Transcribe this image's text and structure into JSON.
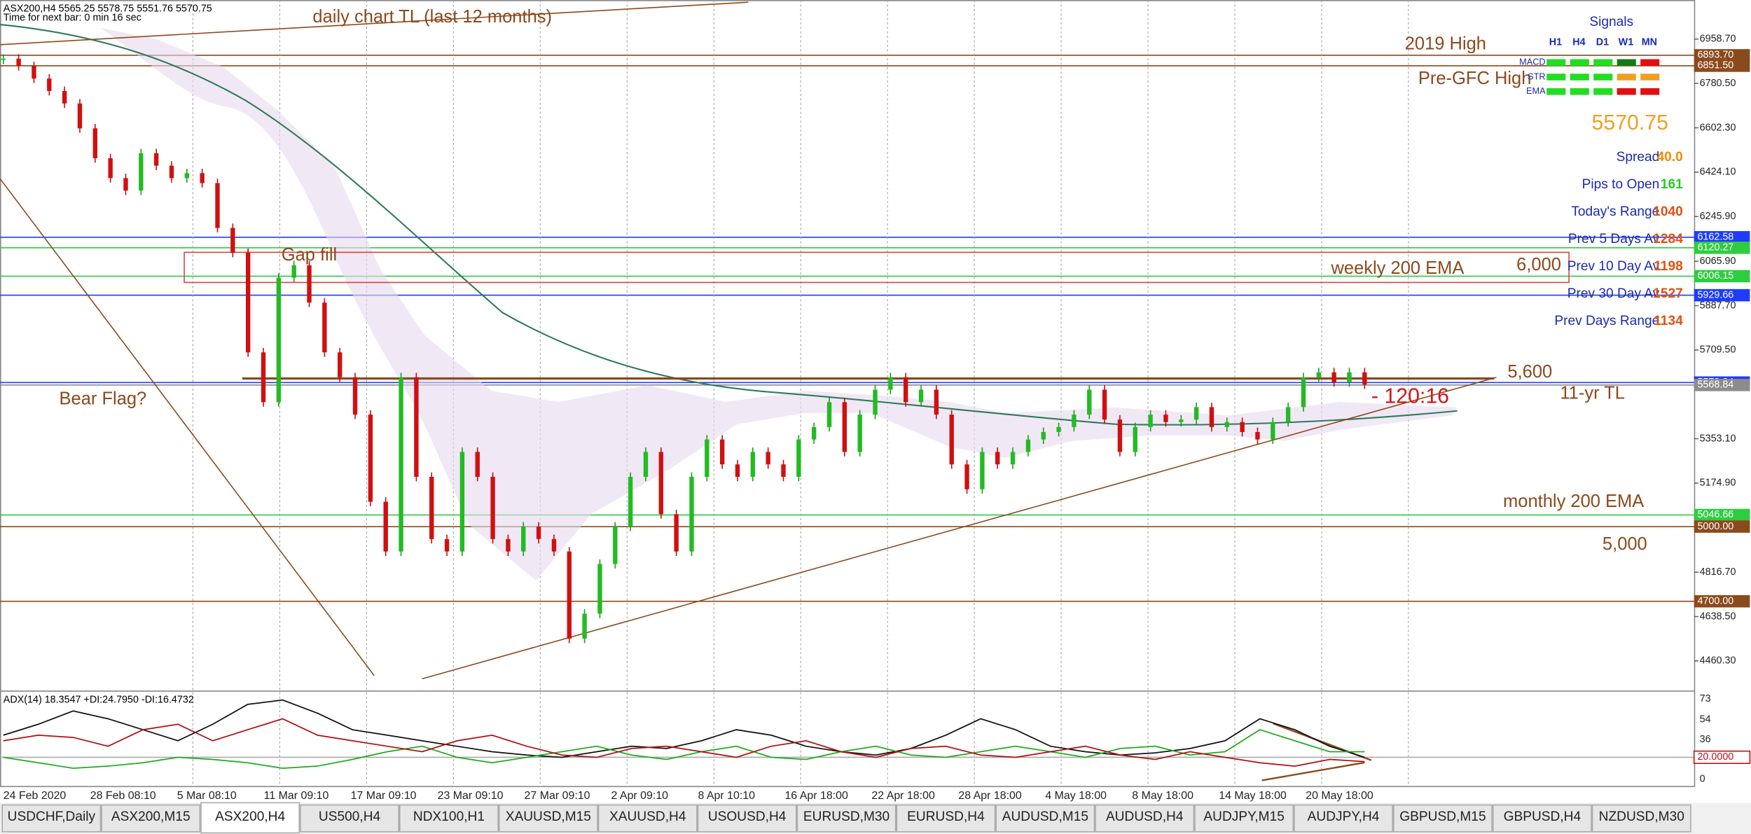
{
  "header": {
    "symbol_line": "ASX200,H4  5565.25 5578.75 5551.76 5570.75",
    "timer": "Time for next bar: 0 min 16 sec"
  },
  "price_axis": [
    {
      "value": 6958.7,
      "label": "6958.70"
    },
    {
      "value": 6780.5,
      "label": "6780.50"
    },
    {
      "value": 6602.3,
      "label": "6602.30"
    },
    {
      "value": 6424.1,
      "label": "6424.10"
    },
    {
      "value": 6245.9,
      "label": "6245.90"
    },
    {
      "value": 6065.9,
      "label": "6065.90"
    },
    {
      "value": 5887.7,
      "label": "5887.70"
    },
    {
      "value": 5709.5,
      "label": "5709.50"
    },
    {
      "value": 5353.1,
      "label": "5353.10"
    },
    {
      "value": 5174.9,
      "label": "5174.90"
    },
    {
      "value": 4816.7,
      "label": "4816.70"
    },
    {
      "value": 4638.5,
      "label": "4638.50"
    },
    {
      "value": 4460.3,
      "label": "4460.30"
    }
  ],
  "price_markers": [
    {
      "value": 6893.7,
      "label": "6893.70",
      "color": "#8b4a1c"
    },
    {
      "value": 6851.5,
      "label": "6851.50",
      "color": "#8b4a1c"
    },
    {
      "value": 6162.58,
      "label": "6162.58",
      "color": "#1e3cff"
    },
    {
      "value": 6120.27,
      "label": "6120.27",
      "color": "#2ecc40"
    },
    {
      "value": 6006.15,
      "label": "6006.15",
      "color": "#2ecc40"
    },
    {
      "value": 5929.66,
      "label": "5929.66",
      "color": "#1e3cff"
    },
    {
      "value": 5578.84,
      "label": "5578.84",
      "color": "#1e3cff"
    },
    {
      "value": 5568.84,
      "label": "5568.84",
      "color": "#8c8c8c"
    },
    {
      "value": 5046.66,
      "label": "5046.66",
      "color": "#2ecc40"
    },
    {
      "value": 5000,
      "label": "5000.00",
      "color": "#8b4a1c"
    },
    {
      "value": 4700,
      "label": "4700.00",
      "color": "#8b4a1c"
    }
  ],
  "time_axis": [
    "24 Feb 2020",
    "28 Feb 08:10",
    "5 Mar 08:10",
    "11 Mar 09:10",
    "17 Mar 09:10",
    "23 Mar 09:10",
    "27 Mar 09:10",
    "2 Apr 09:10",
    "8 Apr 10:10",
    "16 Apr 18:00",
    "22 Apr 18:00",
    "28 Apr 18:00",
    "4 May 18:00",
    "8 May 18:00",
    "14 May 18:00",
    "20 May 18:00"
  ],
  "annotations": {
    "daily_tl": "daily chart TL (last 12 months)",
    "high_2019": "2019 High",
    "pre_gfc": "Pre-GFC High",
    "gap_fill": "Gap fill",
    "weekly_ema": "weekly 200 EMA",
    "level_6000": "6,000",
    "bear_flag": "Bear Flag?",
    "level_5600": "5,600",
    "tl_11yr": "11-yr TL",
    "countdown": "- 120:16",
    "monthly_ema": "monthly 200 EMA",
    "level_5000": "5,000"
  },
  "signals": {
    "title": "Signals",
    "columns": [
      "H1",
      "H4",
      "D1",
      "W1",
      "MN"
    ],
    "rows": [
      {
        "name": "MACD",
        "colors": [
          "#22dd22",
          "#22dd22",
          "#22dd22",
          "#137a13",
          "#e01010"
        ]
      },
      {
        "name": "STR",
        "colors": [
          "#22dd22",
          "#22dd22",
          "#22dd22",
          "#f0a020",
          "#f0a020"
        ]
      },
      {
        "name": "EMA",
        "colors": [
          "#22dd22",
          "#22dd22",
          "#22dd22",
          "#e01010",
          "#e01010"
        ]
      }
    ]
  },
  "current_price": "5570.75",
  "info": [
    {
      "label": "Spread",
      "value": "40.0",
      "color": "#f08a00"
    },
    {
      "label": "Pips to Open",
      "value": "161",
      "color": "#22cc22"
    },
    {
      "label": "Today's Range",
      "value": "1040",
      "color": "#e05010"
    },
    {
      "label": "Prev 5 Days Av",
      "value": "1284",
      "color": "#e05010"
    },
    {
      "label": "Prev 10 Day Av",
      "value": "1198",
      "color": "#e05010"
    },
    {
      "label": "Prev 30 Day Av",
      "value": "1527",
      "color": "#e05010"
    },
    {
      "label": "Prev Days Range",
      "value": "1134",
      "color": "#e05010"
    }
  ],
  "candles": {
    "closes": [
      6880,
      6850,
      6800,
      6750,
      6700,
      6600,
      6480,
      6400,
      6350,
      6500,
      6450,
      6400,
      6420,
      6380,
      6200,
      6100,
      5700,
      5500,
      6000,
      6050,
      5900,
      5700,
      5600,
      5450,
      5100,
      4900,
      5600,
      5200,
      4950,
      4900,
      5300,
      5200,
      4950,
      4900,
      5000,
      4950,
      4900,
      4550,
      4650,
      4850,
      5000,
      5200,
      5300,
      5050,
      4900,
      5200,
      5350,
      5250,
      5200,
      5300,
      5250,
      5200,
      5350,
      5400,
      5500,
      5300,
      5450,
      5550,
      5600,
      5500,
      5550,
      5450,
      5250,
      5150,
      5300,
      5250,
      5300,
      5350,
      5380,
      5400,
      5450,
      5550,
      5430,
      5300,
      5400,
      5450,
      5420,
      5430,
      5480,
      5400,
      5420,
      5380,
      5350,
      5420,
      5480,
      5600,
      5620,
      5580,
      5620,
      5570.75
    ]
  },
  "indicator": {
    "label": "ADX(14) 18.3547 +DI:24.7950 -DI:16.4732",
    "axis": [
      73,
      54,
      36,
      0
    ],
    "marker": {
      "value": 20,
      "label": "20.0000"
    },
    "adx": [
      40,
      50,
      62,
      55,
      45,
      35,
      50,
      68,
      72,
      60,
      45,
      40,
      35,
      30,
      25,
      22,
      20,
      25,
      30,
      28,
      35,
      45,
      40,
      30,
      25,
      22,
      28,
      40,
      55,
      45,
      30,
      25,
      22,
      24,
      28,
      35,
      55,
      45,
      30,
      20
    ],
    "plus_di": [
      20,
      15,
      10,
      12,
      15,
      20,
      18,
      15,
      10,
      12,
      18,
      25,
      30,
      20,
      15,
      20,
      25,
      30,
      22,
      18,
      25,
      30,
      20,
      18,
      25,
      30,
      22,
      20,
      25,
      30,
      25,
      20,
      28,
      30,
      22,
      25,
      45,
      35,
      25,
      25
    ],
    "minus_di": [
      35,
      40,
      38,
      30,
      45,
      50,
      35,
      45,
      55,
      40,
      35,
      30,
      25,
      35,
      40,
      30,
      22,
      20,
      28,
      30,
      25,
      20,
      30,
      35,
      25,
      20,
      28,
      30,
      22,
      20,
      25,
      30,
      22,
      18,
      25,
      20,
      15,
      12,
      18,
      16
    ]
  },
  "tabs": [
    "USDCHF,Daily",
    "ASX200,M15",
    "ASX200,H4",
    "US500,H4",
    "NDX100,H1",
    "XAUUSD,M15",
    "XAUUSD,H4",
    "USOUSD,H4",
    "EURUSD,M30",
    "EURUSD,H4",
    "AUDUSD,M15",
    "AUDUSD,H4",
    "AUDJPY,M15",
    "AUDJPY,H4",
    "GBPUSD,M15",
    "GBPUSD,H4",
    "NZDUSD,M30"
  ],
  "active_tab": 2
}
